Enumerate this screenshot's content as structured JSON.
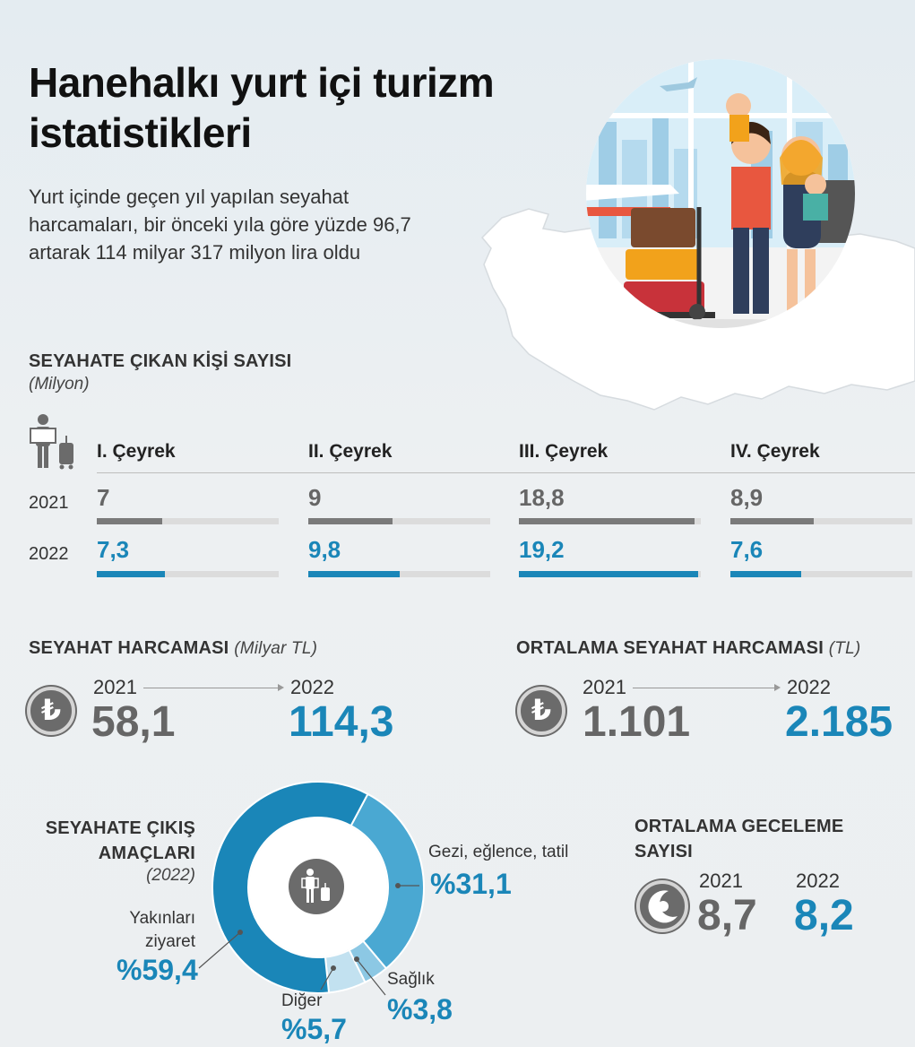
{
  "header": {
    "title": "Hanehalkı yurt içi turizm istatistikleri",
    "subtitle": "Yurt içinde geçen yıl yapılan seyahat harcamaları, bir önceki yıla göre yüzde 96,7 artarak 114 milyar 317 milyon lira oldu"
  },
  "travelers": {
    "heading": "SEYAHATE ÇIKAN KİŞİ SAYISI",
    "unit": "(Milyon)",
    "icon": "traveler-with-luggage-icon"
  },
  "expense": {
    "heading": "SEYAHAT HARCAMASI",
    "unit": "(Milyar TL)",
    "icon": "turkish-lira-icon",
    "year1": "2021",
    "value1": "58,1",
    "year2": "2022",
    "value2": "114,3"
  },
  "avg_expense": {
    "heading": "ORTALAMA SEYAHAT HARCAMASI",
    "unit": "(TL)",
    "icon": "turkish-lira-icon",
    "year1": "2021",
    "value1": "1.101",
    "year2": "2022",
    "value2": "2.185"
  },
  "purposes": {
    "heading_line1": "SEYAHATE ÇIKIŞ",
    "heading_line2": "AMAÇLARI",
    "year_note": "(2022)",
    "icon": "traveler-with-luggage-icon"
  },
  "overnight": {
    "heading_line1": "ORTALAMA GECELEME",
    "heading_line2": "SAYISI",
    "icon": "day-night-icon",
    "year1": "2021",
    "value1": "8,7",
    "year2": "2022",
    "value2": "8,2"
  },
  "colors": {
    "accent_blue": "#1a86b8",
    "grey": "#7a7a7a",
    "pie_dark": "#1a86b8",
    "pie_mid": "#4aa8d2",
    "pie_light": "#8cc8e4",
    "pie_lightest": "#c2e1f0"
  },
  "chart_data": [
    {
      "type": "bar",
      "title": "SEYAHATE ÇIKAN KİŞİ SAYISI",
      "ylabel": "(Milyon)",
      "categories": [
        "I. Çeyrek",
        "II. Çeyrek",
        "III. Çeyrek",
        "IV. Çeyrek"
      ],
      "series": [
        {
          "name": "2021",
          "values": [
            7,
            9,
            18.8,
            8.9
          ],
          "labels": [
            "7",
            "9",
            "18,8",
            "8,9"
          ]
        },
        {
          "name": "2022",
          "values": [
            7.3,
            9.8,
            19.2,
            7.6
          ],
          "labels": [
            "7,3",
            "9,8",
            "19,2",
            "7,6"
          ]
        }
      ],
      "ylim": [
        0,
        19.5
      ]
    },
    {
      "type": "pie",
      "title": "SEYAHATE ÇIKIŞ AMAÇLARI",
      "slices": [
        {
          "label": "Gezi, eğlence, tatil",
          "value": 31.1,
          "text": "%31,1"
        },
        {
          "label": "Sağlık",
          "value": 3.8,
          "text": "%3,8"
        },
        {
          "label": "Diğer",
          "value": 5.7,
          "text": "%5,7"
        },
        {
          "label": "Yakınları ziyaret",
          "value": 59.4,
          "text": "%59,4"
        }
      ]
    }
  ]
}
